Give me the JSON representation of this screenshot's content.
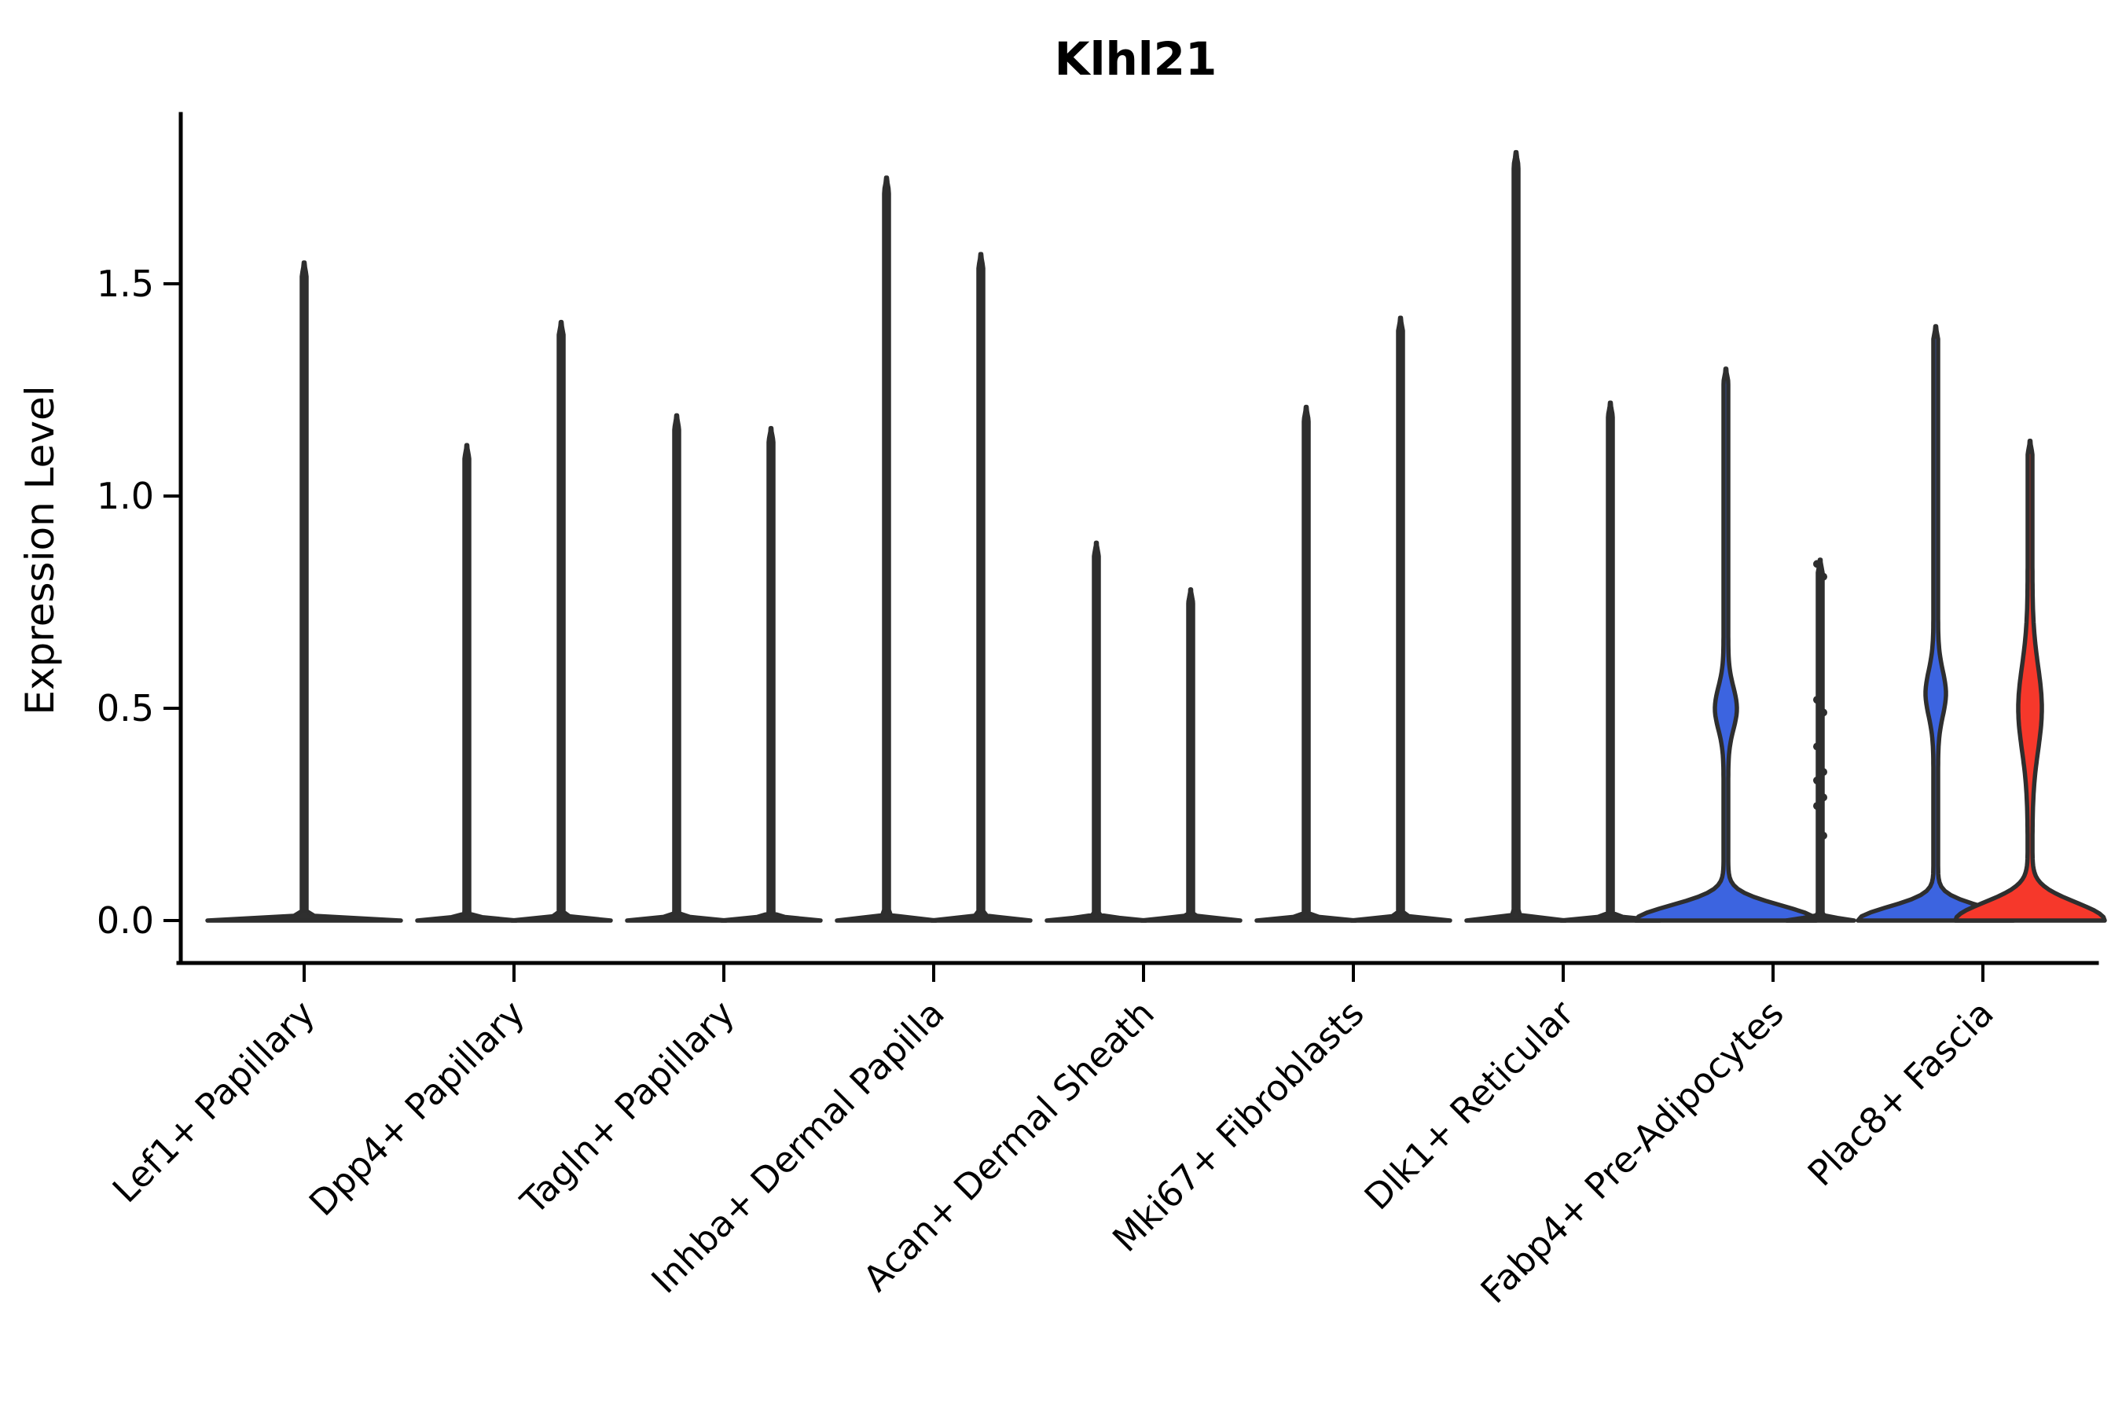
{
  "figure": {
    "title": "Klhl21",
    "ylabel": "Expression Level"
  },
  "chart_data": {
    "type": "violin",
    "title": "Klhl21",
    "xlabel": "",
    "ylabel": "Expression Level",
    "ylim": [
      0,
      1.88
    ],
    "yticks": [
      0.0,
      0.5,
      1.0,
      1.5
    ],
    "ytick_labels": [
      "0.0",
      "0.5",
      "1.0",
      "1.5"
    ],
    "grid": false,
    "legend_position": "none",
    "colors": {
      "violin_outline": "#2e2e2e",
      "violin_dark_fill": "#2f2f2f",
      "highlight_blue": "#3c64e0",
      "highlight_red": "#f6382b",
      "axis": "#000000"
    },
    "categories": [
      "Lef1+ Papillary",
      "Dpp4+ Papillary",
      "Tagln+ Papillary",
      "Inhba+ Dermal Papilla",
      "Acan+ Dermal Sheath",
      "Mki67+ Fibroblasts",
      "Dlk1+ Reticular",
      "Fabp4+ Pre-Adipocytes",
      "Plac8+ Fascia"
    ],
    "description": "Violin plot of Klhl21 expression; most cells near 0 (wide flat base) with thin density spikes up to the per-violin maximum. Fabp4+ Pre-Adipocytes left violin is blue with a bulge around 0.5; its right violin is a thin spike with jittered points. Plac8+ Fascia has a blue left violin and a red right violin, both with mid bulges.",
    "violins": [
      [
        {
          "dx": 0,
          "max": 1.55,
          "style": "thin",
          "base_hw": 120
        }
      ],
      [
        {
          "dx": -60,
          "max": 1.12,
          "style": "thin",
          "base_hw": 60
        },
        {
          "dx": 60,
          "max": 1.41,
          "style": "thin",
          "base_hw": 60
        }
      ],
      [
        {
          "dx": -60,
          "max": 1.19,
          "style": "thin",
          "base_hw": 60
        },
        {
          "dx": 60,
          "max": 1.16,
          "style": "thin",
          "base_hw": 60
        }
      ],
      [
        {
          "dx": -60,
          "max": 1.75,
          "style": "thin",
          "base_hw": 60
        },
        {
          "dx": 60,
          "max": 1.57,
          "style": "thin",
          "base_hw": 60
        }
      ],
      [
        {
          "dx": -60,
          "max": 0.89,
          "style": "thin",
          "base_hw": 60
        },
        {
          "dx": 60,
          "max": 0.78,
          "style": "thin",
          "base_hw": 60
        }
      ],
      [
        {
          "dx": -60,
          "max": 1.21,
          "style": "thin",
          "base_hw": 60
        },
        {
          "dx": 60,
          "max": 1.42,
          "style": "thin",
          "base_hw": 60
        }
      ],
      [
        {
          "dx": -60,
          "max": 1.81,
          "style": "thin",
          "base_hw": 60
        },
        {
          "dx": 60,
          "max": 1.22,
          "style": "thin",
          "base_hw": 60
        }
      ],
      [
        {
          "dx": -60,
          "max": 1.3,
          "style": "filled",
          "fill": "#3c64e0",
          "base_hw": 112,
          "base_sigma": 0.05,
          "bulge": {
            "c": 0.5,
            "s": 0.07,
            "a": 11
          }
        },
        {
          "dx": 60,
          "max": 0.85,
          "style": "thin",
          "base_hw": 40,
          "dots": [
            0.84,
            0.81,
            0.52,
            0.49,
            0.41,
            0.35,
            0.33,
            0.29,
            0.27,
            0.2
          ]
        }
      ],
      [
        {
          "dx": -60,
          "max": 1.4,
          "style": "filled",
          "fill": "#3c64e0",
          "base_hw": 96,
          "base_sigma": 0.045,
          "bulge": {
            "c": 0.535,
            "s": 0.075,
            "a": 10
          }
        },
        {
          "dx": 60,
          "max": 1.13,
          "style": "filled",
          "fill": "#f6382b",
          "base_hw": 92,
          "base_sigma": 0.06,
          "bulge": {
            "c": 0.5,
            "s": 0.14,
            "a": 12
          }
        }
      ]
    ]
  }
}
